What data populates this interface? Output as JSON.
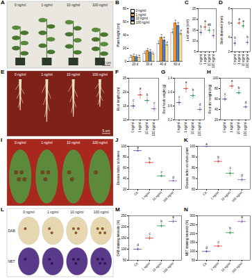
{
  "chart_data": [
    {
      "panel": "B",
      "type": "bar",
      "ylabel": "Plant height (cm)",
      "categories": [
        "20 d",
        "30 d",
        "40 d",
        "60 d"
      ],
      "ylim": [
        0,
        80
      ],
      "yticks": [
        0,
        20,
        40,
        60,
        80
      ],
      "legend": "top-left",
      "series": [
        {
          "name": "0 ng/ml",
          "color": "#ffffff",
          "values": [
            6,
            12,
            27,
            44
          ],
          "errors": [
            0.8,
            1,
            2,
            2.5
          ],
          "letters": [
            "b",
            "c",
            "c",
            "c"
          ]
        },
        {
          "name": "1 ng/ml",
          "color": "#f39c34",
          "values": [
            7.5,
            16,
            36,
            58
          ],
          "errors": [
            0.8,
            1.2,
            2,
            2.5
          ],
          "letters": [
            "a",
            "a",
            "a",
            "a"
          ]
        },
        {
          "name": "10 ng/ml",
          "color": "#4f81bd",
          "values": [
            7,
            14,
            32,
            54
          ],
          "errors": [
            0.8,
            1,
            2,
            2.5
          ],
          "letters": [
            "a",
            "b",
            "b",
            "b"
          ]
        },
        {
          "name": "100 ng/ml",
          "color": "#f7e1a0",
          "values": [
            5.5,
            11,
            25,
            42
          ],
          "errors": [
            0.7,
            1,
            2,
            2.5
          ],
          "letters": [
            "b",
            "c",
            "d",
            "d"
          ]
        }
      ]
    },
    {
      "panel": "C",
      "type": "dot",
      "ylabel": "Leaf area (cm²)",
      "categories": [
        "0 ng/ml",
        "1 ng/ml",
        "10 ng/ml",
        "100 ng/ml"
      ],
      "values": [
        14,
        16.5,
        15,
        12.5
      ],
      "errors": [
        1.5,
        1.8,
        1.6,
        1.5
      ],
      "letters": [
        "b",
        "a",
        "ab",
        "c"
      ],
      "colors": [
        "#5b5ea6",
        "#d9534f",
        "#3c9d5d",
        "#8e6bb5"
      ],
      "ylim": [
        5,
        25
      ],
      "yticks": [
        5,
        10,
        15,
        20,
        25
      ]
    },
    {
      "panel": "D",
      "type": "dot",
      "ylabel": "Stem diameter (mm)",
      "categories": [
        "0 ng/ml",
        "1 ng/ml",
        "10 ng/ml",
        "100 ng/ml"
      ],
      "values": [
        3.2,
        6.0,
        5.6,
        3.3
      ],
      "errors": [
        0.4,
        0.3,
        0.4,
        0.4
      ],
      "letters": [
        "b",
        "a",
        "a",
        "b"
      ],
      "colors": [
        "#5b5ea6",
        "#d9534f",
        "#3c9d5d",
        "#8e6bb5"
      ],
      "ylim": [
        2,
        8
      ],
      "yticks": [
        2,
        4,
        6,
        8
      ]
    },
    {
      "panel": "F",
      "type": "dot",
      "ylabel": "Root length (cm)",
      "categories": [
        "0 ng/ml",
        "1 ng/ml",
        "10 ng/ml",
        "100 ng/ml"
      ],
      "values": [
        15,
        19,
        17,
        14
      ],
      "errors": [
        1.2,
        1.5,
        1.3,
        1.2
      ],
      "letters": [
        "c",
        "a",
        "b",
        "c"
      ],
      "colors": [
        "#5b5ea6",
        "#d9534f",
        "#3c9d5d",
        "#8e6bb5"
      ],
      "ylim": [
        10,
        25
      ],
      "yticks": [
        10,
        15,
        20,
        25
      ]
    },
    {
      "panel": "G",
      "type": "dot",
      "ylabel": "Root fresh weight (g)",
      "categories": [
        "0 ng/ml",
        "1 ng/ml",
        "10 ng/ml",
        "100 ng/ml"
      ],
      "values": [
        0.7,
        1.1,
        0.9,
        0.5
      ],
      "errors": [
        0.1,
        0.12,
        0.1,
        0.08
      ],
      "letters": [
        "c",
        "a",
        "b",
        "d"
      ],
      "colors": [
        "#5b5ea6",
        "#d9534f",
        "#3c9d5d",
        "#8e6bb5"
      ],
      "ylim": [
        0.2,
        1.4
      ],
      "yticks": [
        0.2,
        0.6,
        {
          "value": 1,
          "label": "1.0"
        },
        1.4
      ]
    },
    {
      "panel": "H",
      "type": "dot",
      "ylabel": "Root dry weight (mg)",
      "categories": [
        "0 ng/ml",
        "1 ng/ml",
        "10 ng/ml",
        "100 ng/ml"
      ],
      "values": [
        60,
        85,
        72,
        45
      ],
      "errors": [
        5,
        6,
        5,
        4
      ],
      "letters": [
        "c",
        "a",
        "b",
        "d"
      ],
      "colors": [
        "#5b5ea6",
        "#d9534f",
        "#3c9d5d",
        "#8e6bb5"
      ],
      "ylim": [
        20,
        100
      ],
      "yticks": [
        20,
        40,
        60,
        80,
        100
      ]
    },
    {
      "panel": "J",
      "type": "dot",
      "ylabel": "Disease index on leaves",
      "categories": [
        "CK",
        "1 ng/ml",
        "10 ng/ml",
        "100 ng/ml"
      ],
      "values": [
        92,
        70,
        45,
        36
      ],
      "errors": [
        2,
        3,
        3,
        2
      ],
      "letters": [
        "a",
        "b",
        "c",
        "d"
      ],
      "colors": [
        "#5b5ea6",
        "#d9534f",
        "#3c9d5d",
        "#8e6bb5"
      ],
      "ylim": [
        20,
        100
      ],
      "yticks": [
        20,
        40,
        60,
        80,
        100
      ]
    },
    {
      "panel": "K",
      "type": "dot",
      "ylabel": "Disease index on whole plant",
      "categories": [
        "CK",
        "1 ng/ml",
        "10 ng/ml",
        "100 ng/ml"
      ],
      "values": [
        100,
        86,
        75,
        69
      ],
      "errors": [
        0,
        2,
        3,
        2
      ],
      "letters": [
        "a",
        "b",
        "c",
        "d"
      ],
      "colors": [
        "#5b5ea6",
        "#d9534f",
        "#3c9d5d",
        "#8e6bb5"
      ],
      "ylim": [
        60,
        100
      ],
      "yticks": [
        60,
        70,
        80,
        90,
        100
      ]
    },
    {
      "panel": "M",
      "type": "dot",
      "ylabel": "DAB staining intensity (%)",
      "categories": [
        "CK",
        "1 ng/ml",
        "10 ng/ml",
        "100 ng/ml"
      ],
      "values": [
        100,
        150,
        205,
        225
      ],
      "errors": [
        8,
        10,
        10,
        10
      ],
      "letters": [
        "d",
        "c",
        "b",
        "a"
      ],
      "colors": [
        "#5b5ea6",
        "#d9534f",
        "#3c9d5d",
        "#8e6bb5"
      ],
      "ylim": [
        50,
        250
      ],
      "yticks": [
        50,
        100,
        150,
        200,
        250
      ]
    },
    {
      "panel": "N",
      "type": "dot",
      "ylabel": "NBT staining intensity (%)",
      "categories": [
        "CK",
        "1 ng/ml",
        "10 ng/ml",
        "100 ng/ml"
      ],
      "values": [
        100,
        130,
        205,
        268
      ],
      "errors": [
        8,
        8,
        12,
        12
      ],
      "letters": [
        "d",
        "c",
        "b",
        "a"
      ],
      "colors": [
        "#5b5ea6",
        "#d9534f",
        "#3c9d5d",
        "#8e6bb5"
      ],
      "ylim": [
        50,
        300
      ],
      "yticks": [
        50,
        100,
        150,
        200,
        250,
        300
      ]
    }
  ],
  "images": [
    {
      "panel": "A",
      "labels": [
        "0 ng/ml",
        "1 ng/ml",
        "10 ng/ml",
        "100 ng/ml"
      ],
      "scale_bar": "10 cm"
    },
    {
      "panel": "E",
      "labels": [
        "0 ng/ml",
        "1 ng/ml",
        "10 ng/ml",
        "100 ng/ml"
      ],
      "scale_bar": "5 cm"
    },
    {
      "panel": "I",
      "labels": [
        "0 ng/ml",
        "1 ng/ml",
        "10 ng/ml",
        "100 ng/ml"
      ]
    },
    {
      "panel": "L",
      "labels": [
        "0 ng/ml",
        "1 ng/ml",
        "10 ng/ml",
        "100 ng/ml"
      ],
      "rows": [
        "DAB",
        "NBT"
      ]
    }
  ]
}
